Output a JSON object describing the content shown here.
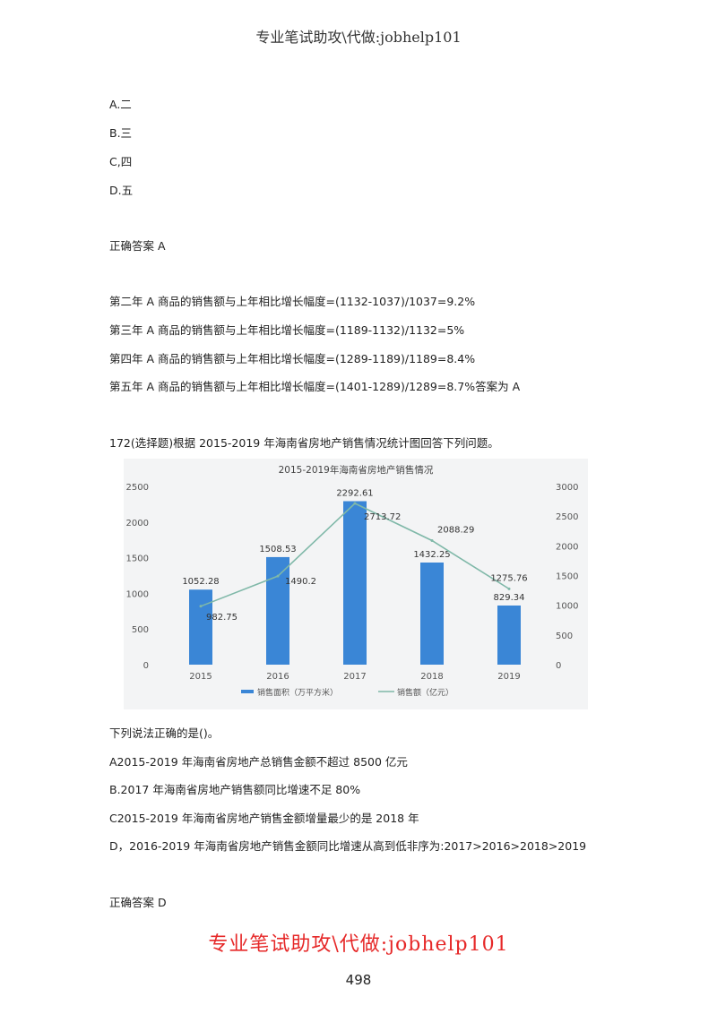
{
  "header": "专业笔试助攻\\代做:jobhelp101",
  "options_prev": [
    "A.二",
    "B.三",
    "C,四",
    "D.五"
  ],
  "answer_prev": "正确答案  A",
  "explanation": [
    "第二年 A 商品的销售额与上年相比增长幅度=(1132-1037)/1037=9.2%",
    "第三年 A 商品的销售额与上年相比增长幅度=(1189-1132)/1132=5%",
    "第四年 A 商品的销售额与上年相比增长幅度=(1289-1189)/1189=8.4%",
    "第五年 A 商品的销售额与上年相比增长幅度=(1401-1289)/1289=8.7%答案为 A"
  ],
  "question": "172(选择题)根据 2015-2019 年海南省房地产销售情况统计图回答下列问题。",
  "prompt": "下列说法正确的是()。",
  "options": [
    "A2015-2019 年海南省房地产总销售金额不超过 8500 亿元",
    "B.2017 年海南省房地产销售额同比增速不足 80%",
    "C2015-2019 年海南省房地产销售金额增量最少的是 2018 年",
    "D，2016-2019 年海南省房地产销售金额同比增速从高到低非序为:2017>2016>2018>2019"
  ],
  "answer": "正确答案 D",
  "page_number": "498",
  "watermark": "专业笔试助攻\\代做:jobhelp101",
  "colors": {
    "bar": "#3a86d6",
    "line": "#7fb8a8",
    "watermark": "#e62828"
  },
  "chart_data": {
    "type": "bar+line",
    "title": "2015-2019年海南省房地产销售情况",
    "categories": [
      "2015",
      "2016",
      "2017",
      "2018",
      "2019"
    ],
    "series": [
      {
        "name": "销售面积（万平方米）",
        "type": "bar",
        "axis": "left",
        "values": [
          1052.28,
          1508.53,
          2292.61,
          1432.25,
          829.34
        ],
        "labels": [
          "1052.28",
          "1508.53",
          "2292.61",
          "1432.25",
          "829.34"
        ]
      },
      {
        "name": "销售额（亿元）",
        "type": "line",
        "axis": "right",
        "values": [
          982.75,
          1490.2,
          2713.72,
          2088.29,
          1275.76
        ],
        "labels": [
          "982.75",
          "1490.2",
          "2713.72",
          "2088.29",
          "1275.76"
        ]
      }
    ],
    "left_axis": {
      "ylim": [
        0,
        2500
      ],
      "ticks": [
        "0",
        "500",
        "1000",
        "1500",
        "2000",
        "2500"
      ]
    },
    "right_axis": {
      "ylim": [
        0,
        3000
      ],
      "ticks": [
        "0",
        "500",
        "1000",
        "1500",
        "2000",
        "2500",
        "3000"
      ]
    },
    "grid": false,
    "legend": "bottom"
  }
}
